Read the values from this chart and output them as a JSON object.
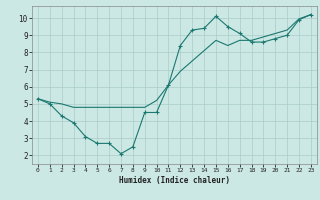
{
  "title": "",
  "xlabel": "Humidex (Indice chaleur)",
  "bg_color": "#cce8e4",
  "grid_color": "#aaccca",
  "line_color": "#1a7870",
  "xlim": [
    -0.5,
    23.5
  ],
  "ylim": [
    1.5,
    10.7
  ],
  "xticks": [
    0,
    1,
    2,
    3,
    4,
    5,
    6,
    7,
    8,
    9,
    10,
    11,
    12,
    13,
    14,
    15,
    16,
    17,
    18,
    19,
    20,
    21,
    22,
    23
  ],
  "yticks": [
    2,
    3,
    4,
    5,
    6,
    7,
    8,
    9,
    10
  ],
  "line1_x": [
    0,
    1,
    2,
    3,
    4,
    5,
    6,
    7,
    8,
    9,
    10,
    11,
    12,
    13,
    14,
    15,
    16,
    17,
    18,
    19,
    20,
    21,
    22,
    23
  ],
  "line1_y": [
    5.3,
    5.0,
    4.3,
    3.9,
    3.1,
    2.7,
    2.7,
    2.1,
    2.5,
    4.5,
    4.5,
    6.1,
    8.4,
    9.3,
    9.4,
    10.1,
    9.5,
    9.1,
    8.6,
    8.6,
    8.8,
    9.0,
    9.9,
    10.2
  ],
  "line2_x": [
    0,
    1,
    2,
    3,
    9,
    10,
    11,
    12,
    13,
    14,
    15,
    16,
    17,
    18,
    19,
    20,
    21,
    22,
    23
  ],
  "line2_y": [
    5.3,
    5.1,
    5.0,
    4.8,
    4.8,
    5.2,
    6.1,
    6.9,
    7.5,
    8.1,
    8.7,
    8.4,
    8.7,
    8.7,
    8.9,
    9.1,
    9.3,
    9.95,
    10.2
  ]
}
